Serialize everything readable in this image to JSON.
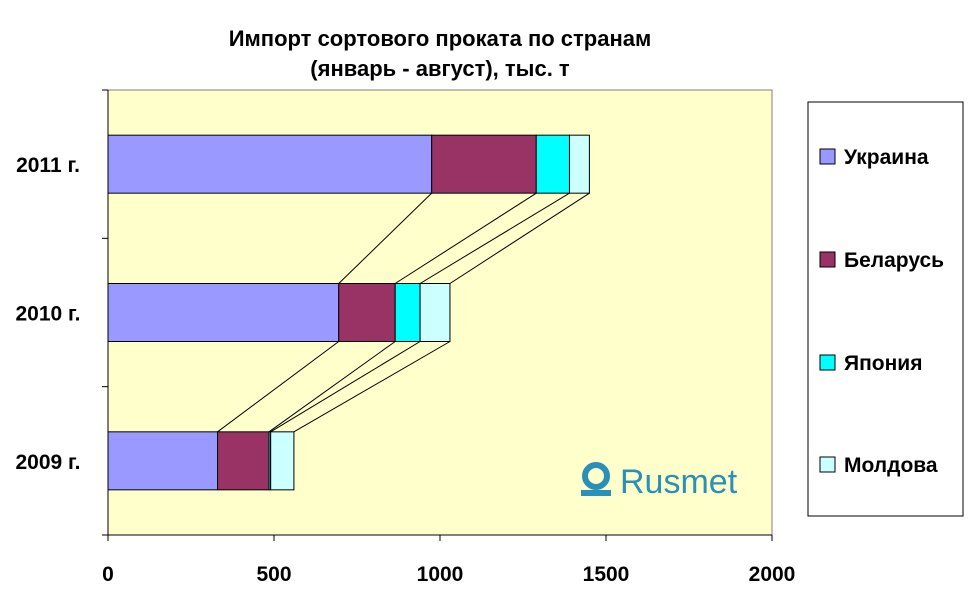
{
  "chart_data": {
    "type": "bar",
    "orientation": "horizontal",
    "stacked": true,
    "title": "Импорт сортового проката по странам",
    "subtitle": "(январь - август), тыс. т",
    "categories": [
      "2011 г.",
      "2010 г.",
      "2009 г."
    ],
    "series": [
      {
        "name": "Украина",
        "color": "#9999FF",
        "values": [
          975,
          695,
          330
        ]
      },
      {
        "name": "Беларусь",
        "color": "#993366",
        "values": [
          315,
          170,
          155
        ]
      },
      {
        "name": "Япония",
        "color": "#00FFFF",
        "values": [
          100,
          75,
          5
        ]
      },
      {
        "name": "Молдова",
        "color": "#CCFFFF",
        "values": [
          60,
          90,
          70
        ]
      }
    ],
    "xlim": [
      0,
      2000
    ],
    "xticks": [
      0,
      500,
      1000,
      1500,
      2000
    ],
    "tick_labels": [
      "0",
      "500",
      "1000",
      "1500",
      "2000"
    ],
    "series_lines": true,
    "plot_background": "#FFFFCC",
    "legend_position": "right",
    "grid": false
  },
  "watermark": {
    "text": "Rusmet",
    "color": "#2a90b8"
  }
}
